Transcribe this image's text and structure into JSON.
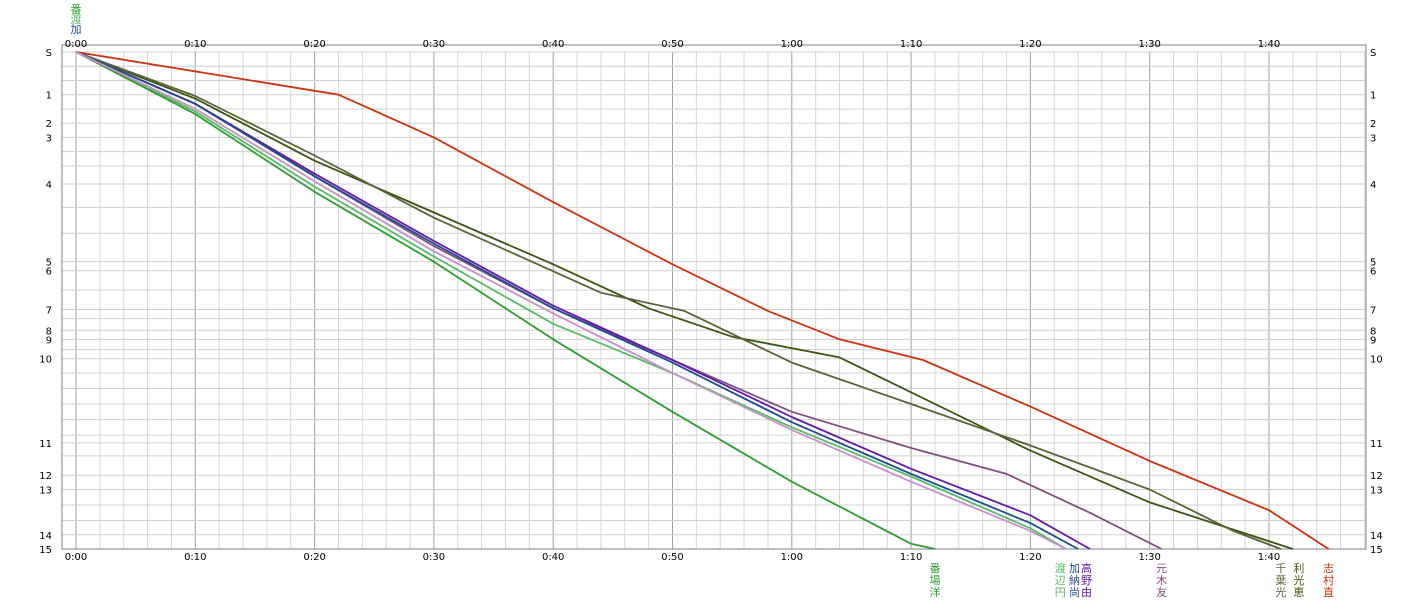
{
  "chart_data": {
    "type": "line",
    "x_unit": "elapsed time (h:mm)",
    "xlim_minutes": [
      0,
      108
    ],
    "x_tick_labels": [
      "0:00",
      "0:10",
      "0:20",
      "0:30",
      "0:40",
      "0:50",
      "1:00",
      "1:10",
      "1:20",
      "1:30",
      "1:40"
    ],
    "x_tick_minutes": [
      0,
      10,
      20,
      30,
      40,
      50,
      60,
      70,
      80,
      90,
      100
    ],
    "y_tick_labels": [
      "S",
      "1",
      "2",
      "3",
      "4",
      "5",
      "6",
      "7",
      "8",
      "9",
      "10",
      "11",
      "12",
      "13",
      "14",
      "15"
    ],
    "y_tick_values_km": [
      0,
      1.65,
      2.75,
      3.3,
      5.1,
      8.1,
      8.45,
      9.95,
      10.75,
      11.1,
      11.85,
      15.1,
      16.35,
      16.9,
      18.65,
      19.2
    ],
    "ylim_km": [
      0,
      19.2
    ],
    "grid": true,
    "legend": "none",
    "series": [
      {
        "name": "志村直",
        "color": "#cc3311",
        "points": [
          [
            0,
            0
          ],
          [
            22,
            1.65
          ],
          [
            30,
            3.3
          ],
          [
            40,
            5.8
          ],
          [
            50,
            8.2
          ],
          [
            58,
            10.0
          ],
          [
            64,
            11.1
          ],
          [
            71,
            11.9
          ],
          [
            80,
            13.7
          ],
          [
            90,
            15.8
          ],
          [
            100,
            17.7
          ],
          [
            105,
            19.2
          ]
        ]
      },
      {
        "name": "利光恵",
        "color": "#3d5512",
        "points": [
          [
            0,
            0
          ],
          [
            10,
            1.8
          ],
          [
            20,
            4.2
          ],
          [
            30,
            6.2
          ],
          [
            40,
            8.2
          ],
          [
            48,
            9.9
          ],
          [
            55,
            11.0
          ],
          [
            64,
            11.8
          ],
          [
            72,
            13.6
          ],
          [
            80,
            15.4
          ],
          [
            90,
            17.4
          ],
          [
            102,
            19.2
          ]
        ]
      },
      {
        "name": "千葉光",
        "color": "#5a6438",
        "points": [
          [
            0,
            0
          ],
          [
            10,
            1.7
          ],
          [
            20,
            4.0
          ],
          [
            30,
            6.4
          ],
          [
            44,
            9.3
          ],
          [
            51,
            10.0
          ],
          [
            60,
            12.0
          ],
          [
            70,
            13.6
          ],
          [
            80,
            15.2
          ],
          [
            90,
            16.9
          ],
          [
            97,
            18.5
          ],
          [
            101,
            19.2
          ]
        ]
      },
      {
        "name": "元木友",
        "color": "#805080",
        "points": [
          [
            0,
            0
          ],
          [
            10,
            2.0
          ],
          [
            20,
            4.8
          ],
          [
            30,
            7.5
          ],
          [
            40,
            9.9
          ],
          [
            50,
            11.9
          ],
          [
            60,
            13.9
          ],
          [
            70,
            15.3
          ],
          [
            78,
            16.3
          ],
          [
            85,
            17.8
          ],
          [
            91,
            19.2
          ]
        ]
      },
      {
        "name": "高野由",
        "color": "#6618a8",
        "points": [
          [
            0,
            0
          ],
          [
            10,
            2.0
          ],
          [
            20,
            4.7
          ],
          [
            30,
            7.3
          ],
          [
            40,
            9.8
          ],
          [
            50,
            11.9
          ],
          [
            60,
            14.1
          ],
          [
            70,
            16.1
          ],
          [
            80,
            17.9
          ],
          [
            85,
            19.2
          ]
        ]
      },
      {
        "name": "加納尚",
        "color": "#1e4d8c",
        "points": [
          [
            0,
            0
          ],
          [
            10,
            2.0
          ],
          [
            20,
            4.8
          ],
          [
            30,
            7.4
          ],
          [
            40,
            9.9
          ],
          [
            50,
            12.0
          ],
          [
            60,
            14.3
          ],
          [
            70,
            16.3
          ],
          [
            80,
            18.2
          ],
          [
            84,
            19.2
          ]
        ]
      },
      {
        "name": "渡辺円",
        "color": "#55bb66",
        "points": [
          [
            0,
            0
          ],
          [
            10,
            2.3
          ],
          [
            20,
            5.2
          ],
          [
            30,
            7.9
          ],
          [
            40,
            10.5
          ],
          [
            50,
            12.4
          ],
          [
            60,
            14.5
          ],
          [
            70,
            16.4
          ],
          [
            80,
            18.4
          ],
          [
            83,
            19.2
          ]
        ]
      },
      {
        "name": "番場洋",
        "color": "#2e9e2e",
        "points": [
          [
            0,
            0
          ],
          [
            10,
            2.4
          ],
          [
            20,
            5.4
          ],
          [
            30,
            8.1
          ],
          [
            40,
            11.1
          ],
          [
            50,
            13.9
          ],
          [
            60,
            16.6
          ],
          [
            70,
            19.0
          ],
          [
            72,
            19.2
          ]
        ]
      },
      {
        "name": "",
        "color": "#c890c8",
        "points": [
          [
            0,
            0
          ],
          [
            10,
            2.2
          ],
          [
            20,
            5.0
          ],
          [
            30,
            7.7
          ],
          [
            40,
            10.1
          ],
          [
            50,
            12.4
          ],
          [
            60,
            14.6
          ],
          [
            70,
            16.6
          ],
          [
            80,
            18.5
          ],
          [
            83,
            19.2
          ]
        ]
      }
    ],
    "name_labels": [
      {
        "text": "番場洋",
        "color": "#2e9e2e",
        "at_minutes": 72
      },
      {
        "text": "渡辺円",
        "color": "#55bb66",
        "at_minutes": 82.5
      },
      {
        "text": "加納尚",
        "color": "#1e4d8c",
        "at_minutes": 83.7
      },
      {
        "text": "高野由",
        "color": "#6618a8",
        "at_minutes": 84.7
      },
      {
        "text": "元木友",
        "color": "#805080",
        "at_minutes": 91
      },
      {
        "text": "千葉光",
        "color": "#5a6438",
        "at_minutes": 101
      },
      {
        "text": "利光恵",
        "color": "#3d5512",
        "at_minutes": 102.5
      },
      {
        "text": "志村直",
        "color": "#cc3311",
        "at_minutes": 105
      }
    ],
    "top_left_glyphs": [
      {
        "text": "番",
        "color": "#2e9e2e"
      },
      {
        "text": "渡",
        "color": "#55bb66"
      },
      {
        "text": "加",
        "color": "#1e4d8c"
      }
    ]
  }
}
